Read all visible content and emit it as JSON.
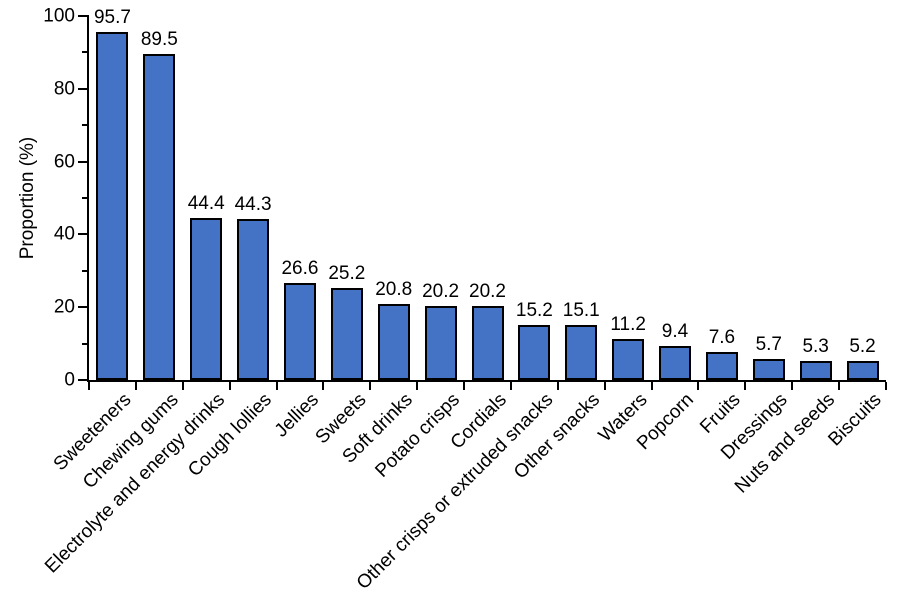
{
  "chart_data": {
    "type": "bar",
    "title": "",
    "xlabel": "",
    "ylabel": "Proportion (%)",
    "ylim": [
      0,
      100
    ],
    "ytick_major_interval": 20,
    "ytick_minor_interval": 10,
    "ytick_labels": [
      "0",
      "20",
      "40",
      "60",
      "80",
      "100"
    ],
    "grid": false,
    "legend": false,
    "value_label_decimals": 1,
    "categories": [
      "Sweeteners",
      "Chewing gums",
      "Electrolyte and energy drinks",
      "Cough lollies",
      "Jellies",
      "Sweets",
      "Soft drinks",
      "Potato crisps",
      "Cordials",
      "Other crisps or extruded snacks",
      "Other snacks",
      "Waters",
      "Popcorn",
      "Fruits",
      "Dressings",
      "Nuts and seeds",
      "Biscuits"
    ],
    "values": [
      95.7,
      89.5,
      44.4,
      44.3,
      26.6,
      25.2,
      20.8,
      20.2,
      20.2,
      15.2,
      15.1,
      11.2,
      9.4,
      7.6,
      5.7,
      5.3,
      5.2
    ],
    "colors": {
      "bar_fill": "#4472C4",
      "bar_border": "#000000",
      "axis": "#000000",
      "text": "#000000",
      "background": "#FFFFFF"
    }
  }
}
